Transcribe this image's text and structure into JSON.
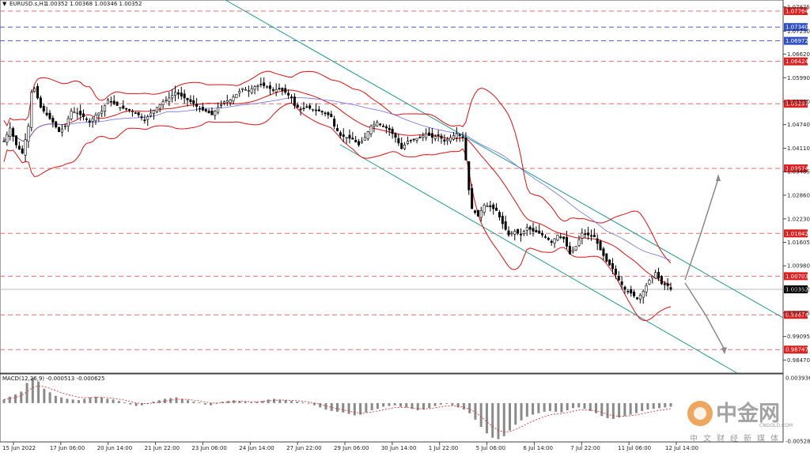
{
  "header": {
    "symbol": "EURUSD.s,H1",
    "ohlc": "1.00352 1.00368 1.00346 1.00352"
  },
  "macd_header": "MACD(12,26,9) -0.000513 -0.000625",
  "watermark": {
    "brand_cn": "中金网",
    "domain": "CNGOLD.COM",
    "slogan_cn": "中文财经新媒体"
  },
  "colors": {
    "candle": "#000000",
    "bollinger": "#e01010",
    "moving_average": "#6f6ff0",
    "channel": "#1e9a8a",
    "level_red": "#e07070",
    "level_blue": "#4a5fd6",
    "arrow": "#8a8a8a",
    "macd_hist": "#8a8a8a",
    "macd_signal": "#e02020",
    "price_label_red": "#e02020",
    "price_label_blue": "#3050c8",
    "price_label_current": "#000000"
  },
  "chart_data": [
    {
      "type": "candlestick",
      "title": "EURUSD.s,H1",
      "yaxis_ticks": [
        "1.07875",
        "1.07230",
        "1.06620",
        "1.05990",
        "1.05350",
        "1.04740",
        "1.04110",
        "1.03485",
        "1.02860",
        "1.02230",
        "1.01605",
        "1.00980",
        "1.00352",
        "0.99725",
        "0.99095",
        "0.98470"
      ],
      "xaxis_ticks": [
        "15 Jun 2022",
        "17 Jun 06:00",
        "20 Jun 14:00",
        "21 Jun 22:00",
        "23 Jun 06:00",
        "24 Jun 14:00",
        "27 Jun 22:00",
        "29 Jun 06:00",
        "30 Jun 14:00",
        "1 Jul 22:00",
        "5 Jul 06:00",
        "6 Jul 14:00",
        "7 Jul 22:00",
        "11 Jul 06:00",
        "12 Jul 14:00"
      ],
      "ylim": [
        0.9812,
        1.0806
      ],
      "horizontal_levels": [
        {
          "label": "1.07764",
          "value": 1.07764,
          "color": "red"
        },
        {
          "label": "1.07340",
          "value": 1.0734,
          "color": "blue"
        },
        {
          "label": "1.06972",
          "value": 1.06972,
          "color": "blue"
        },
        {
          "label": "1.06424",
          "value": 1.06424,
          "color": "red"
        },
        {
          "label": "1.05297",
          "value": 1.05297,
          "color": "red"
        },
        {
          "label": "1.03574",
          "value": 1.03574,
          "color": "red"
        },
        {
          "label": "1.01842",
          "value": 1.01842,
          "color": "red"
        },
        {
          "label": "1.00703",
          "value": 1.00703,
          "color": "red"
        },
        {
          "label": "1.00352",
          "value": 1.00352,
          "color": "current"
        },
        {
          "label": "0.99674",
          "value": 0.99674,
          "color": "red"
        },
        {
          "label": "0.98747",
          "value": 0.98747,
          "color": "red"
        }
      ],
      "close_path": [
        [
          0,
          1.043
        ],
        [
          2,
          1.0465
        ],
        [
          4,
          1.042
        ],
        [
          6,
          1.0398
        ],
        [
          8,
          1.047
        ],
        [
          9,
          1.056
        ],
        [
          10,
          1.057
        ],
        [
          12,
          1.052
        ],
        [
          14,
          1.05
        ],
        [
          16,
          1.048
        ],
        [
          18,
          1.0455
        ],
        [
          20,
          1.047
        ],
        [
          22,
          1.051
        ],
        [
          24,
          1.0505
        ],
        [
          26,
          1.0495
        ],
        [
          28,
          1.048
        ],
        [
          30,
          1.05
        ],
        [
          32,
          1.051
        ],
        [
          34,
          1.054
        ],
        [
          36,
          1.053
        ],
        [
          38,
          1.052
        ],
        [
          40,
          1.0515
        ],
        [
          42,
          1.051
        ],
        [
          44,
          1.05
        ],
        [
          46,
          1.0485
        ],
        [
          48,
          1.0505
        ],
        [
          50,
          1.052
        ],
        [
          52,
          1.0535
        ],
        [
          54,
          1.0545
        ],
        [
          56,
          1.056
        ],
        [
          58,
          1.055
        ],
        [
          60,
          1.054
        ],
        [
          62,
          1.053
        ],
        [
          64,
          1.0515
        ],
        [
          66,
          1.051
        ],
        [
          68,
          1.05
        ],
        [
          70,
          1.052
        ],
        [
          72,
          1.0535
        ],
        [
          74,
          1.054
        ],
        [
          76,
          1.0555
        ],
        [
          78,
          1.057
        ],
        [
          80,
          1.0565
        ],
        [
          82,
          1.0575
        ],
        [
          84,
          1.058
        ],
        [
          86,
          1.0575
        ],
        [
          88,
          1.0565
        ],
        [
          90,
          1.057
        ],
        [
          92,
          1.056
        ],
        [
          94,
          1.0545
        ],
        [
          95,
          1.0525
        ],
        [
          97,
          1.0515
        ],
        [
          99,
          1.052
        ],
        [
          101,
          1.0515
        ],
        [
          103,
          1.051
        ],
        [
          105,
          1.0505
        ],
        [
          107,
          1.0495
        ],
        [
          108,
          1.047
        ],
        [
          110,
          1.0445
        ],
        [
          112,
          1.044
        ],
        [
          114,
          1.0435
        ],
        [
          116,
          1.042
        ],
        [
          118,
          1.044
        ],
        [
          120,
          1.047
        ],
        [
          122,
          1.048
        ],
        [
          124,
          1.047
        ],
        [
          126,
          1.046
        ],
        [
          128,
          1.044
        ],
        [
          130,
          1.041
        ],
        [
          132,
          1.043
        ],
        [
          134,
          1.0435
        ],
        [
          136,
          1.044
        ],
        [
          138,
          1.045
        ],
        [
          140,
          1.044
        ],
        [
          142,
          1.0445
        ],
        [
          144,
          1.043
        ],
        [
          146,
          1.044
        ],
        [
          148,
          1.045
        ],
        [
          150,
          1.044
        ],
        [
          151,
          1.038
        ],
        [
          152,
          1.03
        ],
        [
          153,
          1.025
        ],
        [
          155,
          1.023
        ],
        [
          157,
          1.026
        ],
        [
          159,
          1.0255
        ],
        [
          161,
          1.0245
        ],
        [
          163,
          1.021
        ],
        [
          165,
          1.018
        ],
        [
          167,
          1.019
        ],
        [
          169,
          1.018
        ],
        [
          171,
          1.02
        ],
        [
          173,
          1.019
        ],
        [
          175,
          1.0185
        ],
        [
          177,
          1.0175
        ],
        [
          179,
          1.016
        ],
        [
          181,
          1.018
        ],
        [
          183,
          1.017
        ],
        [
          185,
          1.013
        ],
        [
          187,
          1.015
        ],
        [
          189,
          1.0185
        ],
        [
          191,
          1.018
        ],
        [
          193,
          1.0175
        ],
        [
          195,
          1.014
        ],
        [
          197,
          1.011
        ],
        [
          199,
          1.009
        ],
        [
          201,
          1.006
        ],
        [
          203,
          1.0035
        ],
        [
          205,
          1.0025
        ],
        [
          207,
          1.001
        ],
        [
          209,
          1.003
        ],
        [
          211,
          1.006
        ],
        [
          213,
          1.008
        ],
        [
          215,
          1.005
        ],
        [
          217,
          1.0045
        ],
        [
          218,
          1.00352
        ]
      ]
    },
    {
      "type": "bar",
      "title": "MACD(12,26,9) -0.000513 -0.000625",
      "yaxis_ticks": [
        "0.003936",
        "-0.005281"
      ],
      "ylim": [
        -0.00528,
        0.00394
      ],
      "histogram": [
        0.0005,
        0.0009,
        0.0012,
        0.0016,
        0.0028,
        0.0035,
        0.003,
        0.002,
        0.0015,
        0.001,
        0.0008,
        0.0006,
        0.0005,
        0.0004,
        0.0006,
        0.0008,
        0.0009,
        0.0008,
        0.0006,
        0.0005,
        0.0003,
        0.0001,
        -0.0002,
        -0.0004,
        -0.0003,
        -0.0001,
        0.0002,
        0.0004,
        0.0006,
        0.0007,
        0.0008,
        0.0006,
        0.0004,
        0.0002,
        0.0001,
        -0.0002,
        -0.0003,
        -0.0001,
        0.0002,
        0.0003,
        0.0004,
        0.0003,
        0.0002,
        0.0001,
        0.0002,
        0.0003,
        0.0005,
        0.0006,
        0.0005,
        0.0004,
        0.0003,
        0.0002,
        0.0001,
        -0.0001,
        -0.0003,
        -0.0006,
        -0.0009,
        -0.0011,
        -0.0012,
        -0.0013,
        -0.0015,
        -0.0017,
        -0.0016,
        -0.0013,
        -0.001,
        -0.0008,
        -0.0005,
        -0.0004,
        -0.0003,
        -0.0005,
        -0.0006,
        -0.0008,
        -0.001,
        -0.0009,
        -0.0007,
        -0.0004,
        -0.0002,
        -0.0001,
        -0.0003,
        -0.0006,
        -0.0009,
        -0.0014,
        -0.0023,
        -0.0033,
        -0.0042,
        -0.0048,
        -0.005,
        -0.0046,
        -0.0038,
        -0.003,
        -0.0024,
        -0.0019,
        -0.0016,
        -0.0014,
        -0.0012,
        -0.0011,
        -0.0012,
        -0.0013,
        -0.001,
        -0.0007,
        -0.0006,
        -0.0008,
        -0.0011,
        -0.0014,
        -0.0018,
        -0.0021,
        -0.0022,
        -0.002,
        -0.0018,
        -0.0016,
        -0.0014,
        -0.0011,
        -0.0009,
        -0.0008,
        -0.0007,
        -0.0006,
        -0.0005
      ]
    }
  ]
}
